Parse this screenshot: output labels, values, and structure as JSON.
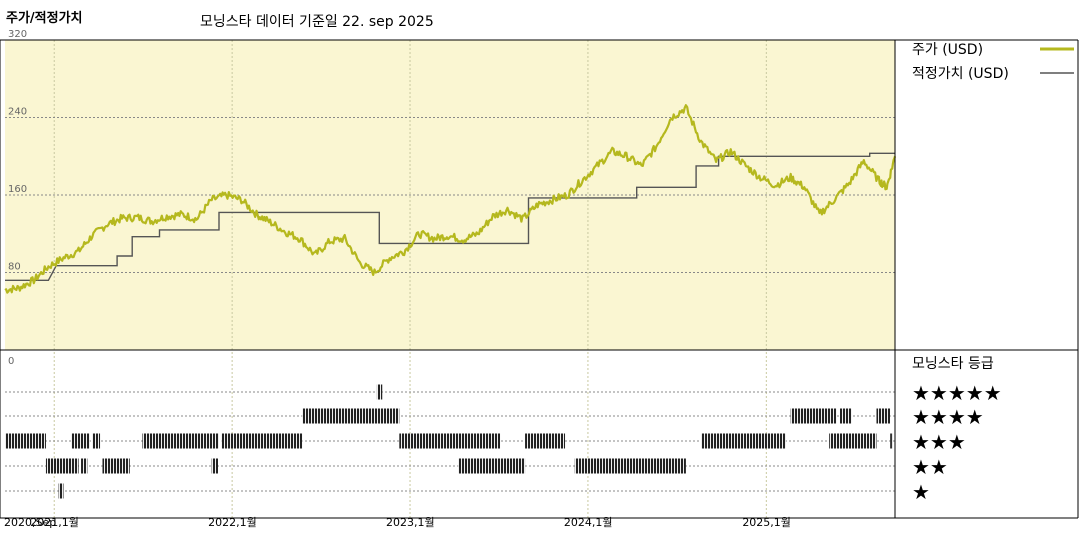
{
  "title": "주가/적정가치",
  "subtitle": "모닝스타 데이터 기준일 22. sep 2025",
  "chart_data": {
    "type": "line",
    "y_ticks": [
      0,
      80,
      160,
      240,
      320
    ],
    "ylim": [
      0,
      320
    ],
    "x_ticks": [
      {
        "label": "2020,Sep",
        "date": "2020-09-22"
      },
      {
        "label": "2021,1월",
        "date": "2021-01-01"
      },
      {
        "label": "2022,1월",
        "date": "2022-01-01"
      },
      {
        "label": "2023,1월",
        "date": "2023-01-01"
      },
      {
        "label": "2024,1월",
        "date": "2024-01-01"
      },
      {
        "label": "2025,1월",
        "date": "2025-01-01"
      }
    ],
    "xlim": [
      "2020-09-22",
      "2025-09-22"
    ],
    "series": [
      {
        "name": "주가 (USD)",
        "color": "#b5b81e",
        "points": [
          [
            "2020-09-22",
            62
          ],
          [
            "2020-10-20",
            64
          ],
          [
            "2020-11-20",
            72
          ],
          [
            "2020-12-20",
            86
          ],
          [
            "2021-01-20",
            95
          ],
          [
            "2021-02-20",
            102
          ],
          [
            "2021-03-20",
            118
          ],
          [
            "2021-04-20",
            130
          ],
          [
            "2021-05-20",
            136
          ],
          [
            "2021-06-20",
            137
          ],
          [
            "2021-07-20",
            133
          ],
          [
            "2021-08-20",
            138
          ],
          [
            "2021-09-20",
            140
          ],
          [
            "2021-10-20",
            135
          ],
          [
            "2021-11-20",
            155
          ],
          [
            "2021-12-20",
            160
          ],
          [
            "2022-01-20",
            155
          ],
          [
            "2022-02-20",
            140
          ],
          [
            "2022-03-20",
            132
          ],
          [
            "2022-04-20",
            122
          ],
          [
            "2022-05-20",
            115
          ],
          [
            "2022-06-20",
            98
          ],
          [
            "2022-07-20",
            112
          ],
          [
            "2022-08-20",
            115
          ],
          [
            "2022-09-20",
            90
          ],
          [
            "2022-10-20",
            80
          ],
          [
            "2022-11-20",
            95
          ],
          [
            "2022-12-20",
            102
          ],
          [
            "2023-01-20",
            120
          ],
          [
            "2023-02-20",
            115
          ],
          [
            "2023-03-20",
            118
          ],
          [
            "2023-04-20",
            114
          ],
          [
            "2023-05-20",
            120
          ],
          [
            "2023-06-20",
            138
          ],
          [
            "2023-07-20",
            145
          ],
          [
            "2023-08-20",
            135
          ],
          [
            "2023-09-20",
            150
          ],
          [
            "2023-10-20",
            155
          ],
          [
            "2023-11-20",
            160
          ],
          [
            "2023-12-20",
            175
          ],
          [
            "2024-01-20",
            190
          ],
          [
            "2024-02-20",
            205
          ],
          [
            "2024-03-20",
            200
          ],
          [
            "2024-04-20",
            190
          ],
          [
            "2024-05-20",
            210
          ],
          [
            "2024-06-20",
            240
          ],
          [
            "2024-07-20",
            250
          ],
          [
            "2024-08-20",
            215
          ],
          [
            "2024-09-20",
            195
          ],
          [
            "2024-10-20",
            205
          ],
          [
            "2024-11-20",
            190
          ],
          [
            "2024-12-20",
            178
          ],
          [
            "2025-01-20",
            170
          ],
          [
            "2025-02-20",
            178
          ],
          [
            "2025-03-20",
            168
          ],
          [
            "2025-04-20",
            140
          ],
          [
            "2025-05-20",
            155
          ],
          [
            "2025-06-20",
            172
          ],
          [
            "2025-07-20",
            195
          ],
          [
            "2025-08-20",
            175
          ],
          [
            "2025-09-05",
            168
          ],
          [
            "2025-09-22",
            200
          ]
        ]
      },
      {
        "name": "적정가치 (USD)",
        "color": "#555555",
        "steps": [
          [
            "2020-09-22",
            72
          ],
          [
            "2020-12-20",
            72
          ],
          [
            "2021-01-05",
            87
          ],
          [
            "2021-05-10",
            87
          ],
          [
            "2021-05-10",
            97
          ],
          [
            "2021-06-10",
            97
          ],
          [
            "2021-06-10",
            117
          ],
          [
            "2021-08-05",
            117
          ],
          [
            "2021-08-05",
            124
          ],
          [
            "2021-12-05",
            124
          ],
          [
            "2021-12-05",
            142
          ],
          [
            "2022-10-30",
            142
          ],
          [
            "2022-10-30",
            110
          ],
          [
            "2023-09-01",
            110
          ],
          [
            "2023-09-01",
            157
          ],
          [
            "2024-04-10",
            157
          ],
          [
            "2024-04-10",
            168
          ],
          [
            "2024-08-10",
            168
          ],
          [
            "2024-08-10",
            190
          ],
          [
            "2024-09-25",
            190
          ],
          [
            "2024-09-25",
            200
          ],
          [
            "2025-08-01",
            200
          ],
          [
            "2025-08-01",
            203
          ],
          [
            "2025-09-22",
            203
          ]
        ]
      }
    ],
    "rating_panel": {
      "title": "모닝스타 등급",
      "levels": [
        "★★★★★",
        "★★★★",
        "★★★",
        "★★",
        "★"
      ],
      "periods": [
        {
          "stars": 3,
          "from": "2020-09-22",
          "to": "2020-12-15"
        },
        {
          "stars": 2,
          "from": "2020-12-15",
          "to": "2021-02-20"
        },
        {
          "stars": 1,
          "from": "2021-01-10",
          "to": "2021-01-20"
        },
        {
          "stars": 3,
          "from": "2021-02-05",
          "to": "2021-03-15"
        },
        {
          "stars": 2,
          "from": "2021-02-25",
          "to": "2021-03-10"
        },
        {
          "stars": 3,
          "from": "2021-03-20",
          "to": "2021-04-05"
        },
        {
          "stars": 2,
          "from": "2021-04-10",
          "to": "2021-06-05"
        },
        {
          "stars": 3,
          "from": "2021-07-01",
          "to": "2021-12-05"
        },
        {
          "stars": 2,
          "from": "2021-11-20",
          "to": "2021-12-03"
        },
        {
          "stars": 3,
          "from": "2021-12-10",
          "to": "2022-05-25"
        },
        {
          "stars": 4,
          "from": "2022-05-25",
          "to": "2022-12-10"
        },
        {
          "stars": 5,
          "from": "2022-10-25",
          "to": "2022-11-05"
        },
        {
          "stars": 3,
          "from": "2022-12-10",
          "to": "2023-07-05"
        },
        {
          "stars": 2,
          "from": "2023-04-10",
          "to": "2023-08-25"
        },
        {
          "stars": 3,
          "from": "2023-08-25",
          "to": "2023-11-15"
        },
        {
          "stars": 2,
          "from": "2023-12-05",
          "to": "2024-07-20"
        },
        {
          "stars": 3,
          "from": "2024-08-20",
          "to": "2025-02-10"
        },
        {
          "stars": 4,
          "from": "2025-02-20",
          "to": "2025-05-25"
        },
        {
          "stars": 4,
          "from": "2025-06-01",
          "to": "2025-06-25"
        },
        {
          "stars": 3,
          "from": "2025-05-10",
          "to": "2025-08-15"
        },
        {
          "stars": 4,
          "from": "2025-08-15",
          "to": "2025-09-12"
        },
        {
          "stars": 3,
          "from": "2025-09-12",
          "to": "2025-09-20"
        }
      ]
    }
  }
}
